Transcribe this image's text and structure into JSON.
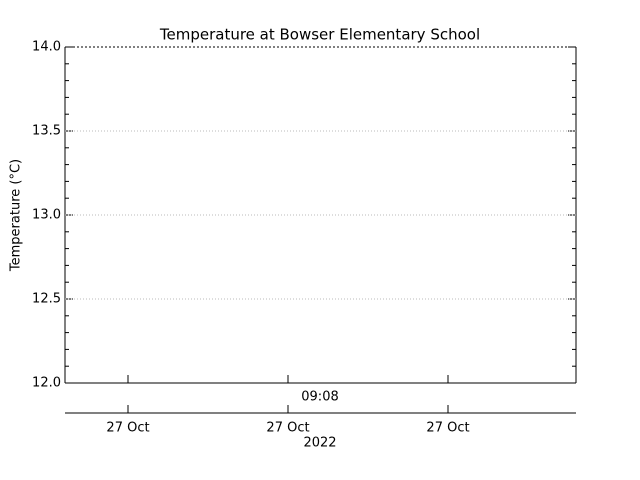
{
  "chart_data": {
    "type": "line",
    "title": "Temperature at Bowser Elementary School",
    "ylabel": "Temperature (°C)",
    "ylim": [
      12,
      14
    ],
    "yticks": [
      {
        "value": 12,
        "label": "12.0"
      },
      12.5,
      {
        "value": 13,
        "label": "13.0"
      },
      13.5,
      {
        "value": 14,
        "label": "14.0"
      }
    ],
    "grid": true,
    "time_label": "09:08",
    "date_ticks": [
      "27 Oct",
      "27 Oct",
      "27 Oct"
    ],
    "xlabel": "2022",
    "series": []
  }
}
